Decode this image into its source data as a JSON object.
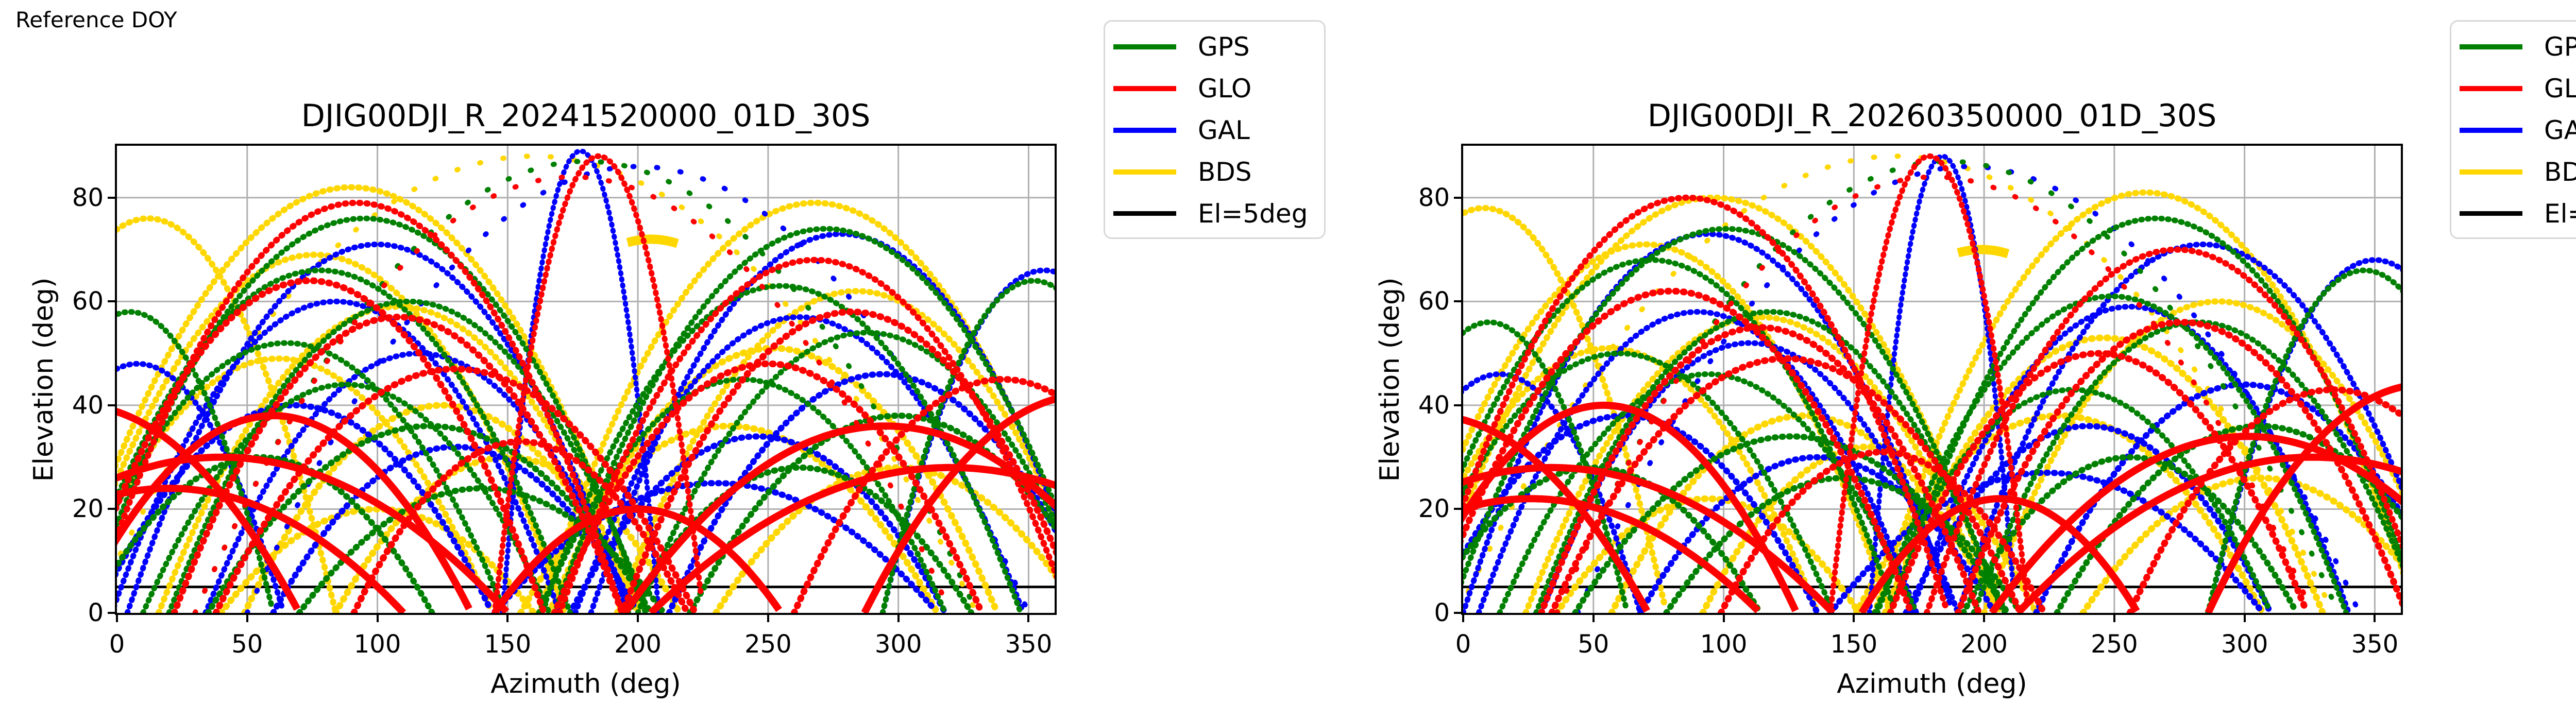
{
  "header": {
    "text": "Reference DOY"
  },
  "legend": {
    "entries": [
      {
        "label": "GPS",
        "color": "#008000"
      },
      {
        "label": "GLO",
        "color": "#ff0000"
      },
      {
        "label": "GAL",
        "color": "#0000ff"
      },
      {
        "label": "BDS",
        "color": "#ffd700"
      },
      {
        "label": "El=5deg",
        "color": "#000000"
      }
    ]
  },
  "chart_data": {
    "type": "scatter",
    "xlabel": "Azimuth (deg)",
    "ylabel": "Elevation (deg)",
    "xlim": [
      0,
      360
    ],
    "ylim": [
      0,
      90
    ],
    "xticks": [
      0,
      50,
      100,
      150,
      200,
      250,
      300,
      350
    ],
    "yticks": [
      0,
      20,
      40,
      60,
      80
    ],
    "grid": true,
    "grid_color": "#b0b0b0",
    "elevation_cutoff_deg": 5,
    "cutoff_color": "#000000",
    "colors": {
      "GPS": "#008000",
      "GLO": "#ff0000",
      "GAL": "#0000ff",
      "BDS": "#ffd700"
    },
    "draw_order": [
      "BDS",
      "GAL",
      "GPS",
      "GLO"
    ],
    "arc_format": "[azimuth_center_deg, azimuth_halfwidth_deg, max_elevation_deg, stroke_px, style d=dense-dots s=sparse-dots o=solid, optional seg_start_deg, seg_end_deg]",
    "plots": [
      {
        "title": "DJIG00DJI_R_20241520000_01D_30S",
        "arcs": {
          "GPS": [
            [
              95,
              108,
              76,
              11,
              "d"
            ],
            [
              78,
              96,
              66,
              11,
              "d"
            ],
            [
              112,
              92,
              60,
              11,
              "d"
            ],
            [
              65,
              84,
              52,
              11,
              "d"
            ],
            [
              88,
              78,
              44,
              11,
              "d"
            ],
            [
              120,
              85,
              36,
              12,
              "d"
            ],
            [
              55,
              66,
              30,
              12,
              "d"
            ],
            [
              140,
              70,
              24,
              12,
              "d"
            ],
            [
              272,
              104,
              74,
              11,
              "d"
            ],
            [
              255,
              92,
              63,
              11,
              "d"
            ],
            [
              288,
              88,
              54,
              11,
              "d"
            ],
            [
              240,
              78,
              45,
              11,
              "d"
            ],
            [
              300,
              80,
              38,
              12,
              "d"
            ],
            [
              262,
              66,
              28,
              12,
              "d"
            ],
            [
              352,
              58,
              64,
              11,
              "d"
            ],
            [
              5,
              55,
              58,
              11,
              "d"
            ],
            [
              180,
              150,
              87,
              10,
              "s"
            ]
          ],
          "GLO": [
            [
              92,
              102,
              79,
              12,
              "d"
            ],
            [
              74,
              90,
              64,
              13,
              "d"
            ],
            [
              108,
              86,
              57,
              13,
              "d"
            ],
            [
              130,
              92,
              47,
              13,
              "d"
            ],
            [
              60,
              76,
              38,
              14,
              "o"
            ],
            [
              40,
              110,
              30,
              14,
              "o"
            ],
            [
              20,
              90,
              24,
              14,
              "o"
            ],
            [
              155,
              64,
              33,
              13,
              "d"
            ],
            [
              268,
              98,
              68,
              12,
              "d"
            ],
            [
              282,
              88,
              58,
              13,
              "d"
            ],
            [
              250,
              82,
              48,
              13,
              "d"
            ],
            [
              295,
              100,
              36,
              14,
              "o"
            ],
            [
              320,
              115,
              28,
              14,
              "o"
            ],
            [
              340,
              80,
              45,
              13,
              "d"
            ],
            [
              185,
              40,
              88,
              11,
              "d"
            ],
            [
              -15,
              85,
              40,
              14,
              "o"
            ],
            [
              372,
              85,
              42,
              14,
              "o"
            ],
            [
              200,
              55,
              20,
              14,
              "o"
            ],
            [
              175,
              145,
              84,
              10,
              "s"
            ]
          ],
          "GAL": [
            [
              100,
              96,
              71,
              11,
              "d"
            ],
            [
              84,
              86,
              60,
              11,
              "d"
            ],
            [
              116,
              82,
              50,
              11,
              "d"
            ],
            [
              68,
              76,
              40,
              12,
              "d"
            ],
            [
              130,
              70,
              32,
              12,
              "d"
            ],
            [
              278,
              96,
              73,
              11,
              "d"
            ],
            [
              262,
              86,
              57,
              11,
              "d"
            ],
            [
              294,
              82,
              46,
              12,
              "d"
            ],
            [
              246,
              72,
              34,
              12,
              "d"
            ],
            [
              178,
              30,
              89,
              10,
              "d"
            ],
            [
              356,
              62,
              66,
              11,
              "d"
            ],
            [
              8,
              56,
              48,
              11,
              "d"
            ],
            [
              230,
              85,
              25,
              12,
              "d"
            ],
            [
              200,
              150,
              86,
              10,
              "s"
            ]
          ],
          "BDS": [
            [
              90,
              112,
              82,
              12,
              "d"
            ],
            [
              76,
              96,
              69,
              12,
              "d"
            ],
            [
              108,
              92,
              59,
              12,
              "d"
            ],
            [
              62,
              82,
              49,
              12,
              "d"
            ],
            [
              125,
              76,
              40,
              13,
              "d"
            ],
            [
              100,
              60,
              20,
              13,
              "d"
            ],
            [
              268,
              106,
              79,
              12,
              "d"
            ],
            [
              284,
              92,
              62,
              12,
              "d"
            ],
            [
              252,
              86,
              51,
              13,
              "d"
            ],
            [
              235,
              80,
              36,
              13,
              "d"
            ],
            [
              12,
              72,
              76,
              12,
              "d"
            ],
            [
              150,
              66,
              30,
              13,
              "d"
            ],
            [
              300,
              70,
              28,
              13,
              "d"
            ],
            [
              205,
              95,
              72,
              18,
              "o",
              196,
              216
            ],
            [
              160,
              170,
              88,
              10,
              "s"
            ]
          ]
        }
      },
      {
        "title": "DJIG00DJI_R_20260350000_01D_30S",
        "arcs": {
          "GPS": [
            [
              101,
              106,
              74,
              11,
              "d"
            ],
            [
              72,
              94,
              68,
              11,
              "d"
            ],
            [
              118,
              90,
              58,
              11,
              "d"
            ],
            [
              60,
              82,
              50,
              11,
              "d"
            ],
            [
              94,
              80,
              46,
              11,
              "d"
            ],
            [
              126,
              83,
              34,
              12,
              "d"
            ],
            [
              50,
              64,
              28,
              12,
              "d"
            ],
            [
              146,
              68,
              26,
              12,
              "d"
            ],
            [
              266,
              102,
              76,
              11,
              "d"
            ],
            [
              249,
              90,
              61,
              11,
              "d"
            ],
            [
              282,
              86,
              56,
              11,
              "d"
            ],
            [
              234,
              76,
              43,
              11,
              "d"
            ],
            [
              306,
              78,
              36,
              12,
              "d"
            ],
            [
              256,
              64,
              30,
              12,
              "d"
            ],
            [
              346,
              60,
              66,
              11,
              "d"
            ],
            [
              10,
              53,
              56,
              11,
              "d"
            ],
            [
              186,
              150,
              87,
              10,
              "s"
            ]
          ],
          "GLO": [
            [
              86,
              100,
              80,
              12,
              "d"
            ],
            [
              80,
              92,
              62,
              13,
              "d"
            ],
            [
              114,
              84,
              55,
              13,
              "d"
            ],
            [
              124,
              90,
              49,
              13,
              "d"
            ],
            [
              54,
              74,
              40,
              14,
              "o"
            ],
            [
              34,
              108,
              28,
              14,
              "o"
            ],
            [
              26,
              88,
              22,
              14,
              "o"
            ],
            [
              161,
              62,
              31,
              13,
              "d"
            ],
            [
              274,
              96,
              70,
              12,
              "d"
            ],
            [
              276,
              86,
              56,
              13,
              "d"
            ],
            [
              244,
              80,
              50,
              13,
              "d"
            ],
            [
              301,
              98,
              34,
              14,
              "o"
            ],
            [
              326,
              113,
              30,
              14,
              "o"
            ],
            [
              334,
              78,
              43,
              13,
              "d"
            ],
            [
              179,
              38,
              88,
              11,
              "d"
            ],
            [
              -12,
              83,
              38,
              14,
              "o"
            ],
            [
              369,
              83,
              44,
              14,
              "o"
            ],
            [
              206,
              53,
              22,
              14,
              "o"
            ],
            [
              181,
              145,
              84,
              10,
              "s"
            ]
          ],
          "GAL": [
            [
              94,
              94,
              73,
              11,
              "d"
            ],
            [
              90,
              84,
              58,
              11,
              "d"
            ],
            [
              110,
              80,
              52,
              11,
              "d"
            ],
            [
              62,
              74,
              38,
              12,
              "d"
            ],
            [
              136,
              68,
              30,
              12,
              "d"
            ],
            [
              284,
              94,
              71,
              11,
              "d"
            ],
            [
              256,
              84,
              59,
              11,
              "d"
            ],
            [
              300,
              80,
              44,
              12,
              "d"
            ],
            [
              240,
              70,
              36,
              12,
              "d"
            ],
            [
              184,
              28,
              88,
              10,
              "d"
            ],
            [
              350,
              64,
              68,
              11,
              "d"
            ],
            [
              14,
              54,
              46,
              11,
              "d"
            ],
            [
              224,
              83,
              27,
              12,
              "d"
            ],
            [
              194,
              150,
              86,
              10,
              "s"
            ]
          ],
          "BDS": [
            [
              96,
              110,
              80,
              12,
              "d"
            ],
            [
              70,
              94,
              71,
              12,
              "d"
            ],
            [
              114,
              90,
              57,
              12,
              "d"
            ],
            [
              56,
              80,
              51,
              12,
              "d"
            ],
            [
              131,
              74,
              38,
              13,
              "d"
            ],
            [
              94,
              58,
              22,
              13,
              "d"
            ],
            [
              262,
              104,
              81,
              12,
              "d"
            ],
            [
              290,
              90,
              60,
              12,
              "d"
            ],
            [
              246,
              84,
              53,
              13,
              "d"
            ],
            [
              229,
              78,
              38,
              13,
              "d"
            ],
            [
              8,
              70,
              78,
              12,
              "d"
            ],
            [
              156,
              64,
              32,
              13,
              "d"
            ],
            [
              306,
              68,
              26,
              13,
              "d"
            ],
            [
              199,
              95,
              70,
              18,
              "o",
              190,
              210
            ],
            [
              166,
              168,
              88,
              10,
              "s"
            ]
          ]
        }
      }
    ]
  }
}
